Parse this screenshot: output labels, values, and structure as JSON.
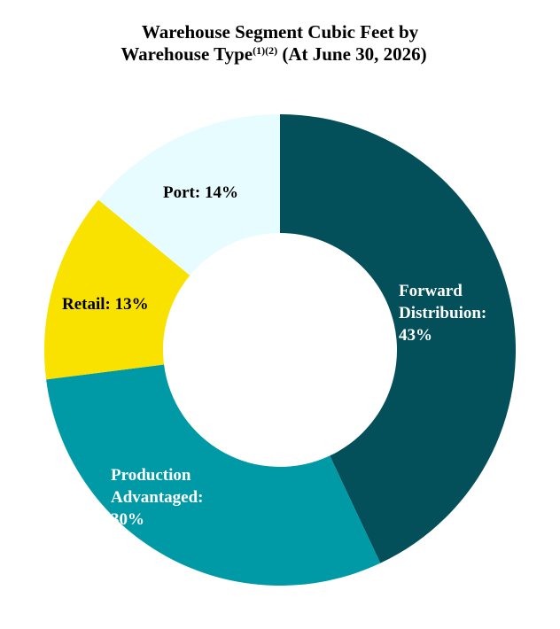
{
  "title": {
    "line1": "Warehouse Segment Cubic Feet by",
    "line2_text": "Warehouse Type",
    "line2_sup": "(1)(2)",
    "line2_suffix": " (At June 30, 2026)"
  },
  "chart_data": {
    "type": "pie",
    "style": "donut",
    "legend": "none",
    "slices": [
      {
        "name": "Forward Distribuion",
        "value": 43,
        "label_lines": [
          "Forward",
          "Distribuion:",
          "43%"
        ],
        "color": "#034f5a",
        "label_color": "#ffffff"
      },
      {
        "name": "Production Advantaged",
        "value": 30,
        "label_lines": [
          "Production",
          "Advantaged:",
          "30%"
        ],
        "color": "#009aa6",
        "label_color": "#ffffff"
      },
      {
        "name": "Retail",
        "value": 13,
        "label_lines": [
          "Retail: 13%"
        ],
        "color": "#f9e200",
        "label_color": "#000000"
      },
      {
        "name": "Port",
        "value": 14,
        "label_lines": [
          "Port: 14%"
        ],
        "color": "#e6fcff",
        "label_color": "#000000"
      }
    ]
  }
}
